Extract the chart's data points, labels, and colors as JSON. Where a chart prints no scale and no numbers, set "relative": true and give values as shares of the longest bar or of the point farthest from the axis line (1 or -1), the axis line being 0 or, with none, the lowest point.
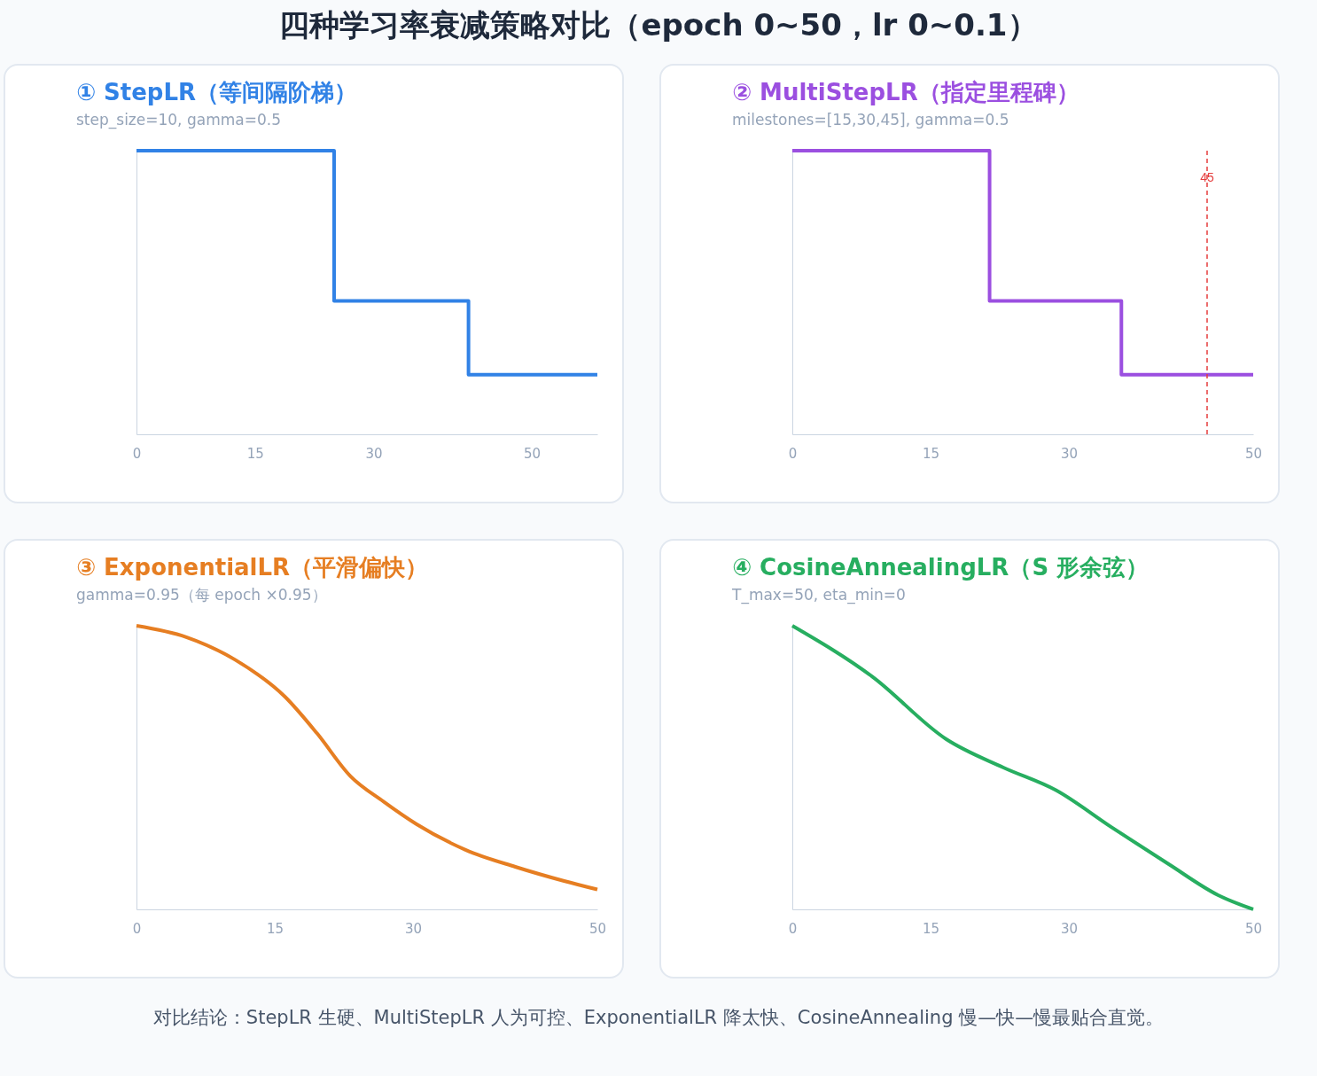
{
  "chart_data": [
    {
      "type": "step",
      "title": "① StepLR（等间隔阶梯）",
      "subtitle": "step_size=10, gamma=0.5",
      "annotations": [
        "四种学习率衰减策略对比（epoch 0~50，lr 0~0.1）"
      ],
      "relative": true,
      "x": [
        0,
        25,
        42,
        58.3
      ],
      "xlim": [
        0,
        58.3
      ],
      "xticks": [
        0,
        15,
        30,
        50
      ],
      "series": [
        {
          "color": "#3182e6",
          "values": [
            1,
            0.47,
            0.21,
            0.21
          ]
        }
      ]
    },
    {
      "type": "step",
      "title": "② MultiStepLR（指定里程碑）",
      "subtitle": "milestones=[15,30,45], gamma=0.5",
      "relative": true,
      "x": [
        0,
        21.4,
        35.7,
        50
      ],
      "xlim": [
        0,
        50
      ],
      "xticks": [
        0,
        15,
        30,
        50
      ],
      "series": [
        {
          "color": "#9b4fe0",
          "values": [
            1,
            0.47,
            0.21,
            0.21
          ]
        }
      ],
      "ref_lines": [
        {
          "axis": "x",
          "value": 45,
          "label": "45",
          "color": "#e53e3e",
          "line_style": "dashed"
        }
      ]
    },
    {
      "type": "line",
      "title": "③ ExponentialLR（平滑偏快）",
      "subtitle": "gamma=0.95（每 epoch ×0.95）",
      "relative": true,
      "x": [
        0,
        5.4,
        10.7,
        16.1,
        19.6,
        23.2,
        26.8,
        30.4,
        35.7,
        41.1,
        46.4,
        50
      ],
      "xlim": [
        0,
        50
      ],
      "xticks": [
        0,
        15,
        30,
        50
      ],
      "series": [
        {
          "color": "#e67e22",
          "values": [
            1,
            0.96,
            0.88,
            0.75,
            0.62,
            0.47,
            0.38,
            0.3,
            0.21,
            0.15,
            0.1,
            0.07
          ]
        }
      ]
    },
    {
      "type": "line",
      "title": "④ CosineAnnealingLR（S 形余弦）",
      "subtitle": "T_max=50, eta_min=0",
      "annotations": [
        "对比结论：StepLR 生硬、MultiStepLR 人为可控、ExponentialLR 降太快、CosineAnnealing 慢—快—慢最贴合直觉。"
      ],
      "relative": true,
      "x": [
        0,
        8.7,
        16.7,
        22.9,
        28.6,
        34.6,
        40.8,
        46.2,
        50
      ],
      "xlim": [
        0,
        50
      ],
      "xticks": [
        0,
        15,
        30,
        50
      ],
      "series": [
        {
          "color": "#27ae60",
          "values": [
            1,
            0.82,
            0.6,
            0.5,
            0.42,
            0.29,
            0.16,
            0.05,
            0
          ]
        }
      ]
    }
  ]
}
